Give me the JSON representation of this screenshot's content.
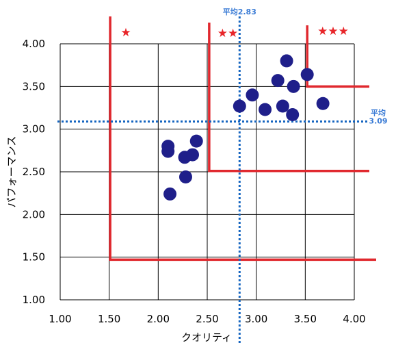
{
  "chart_data": {
    "type": "scatter",
    "xlabel": "クオリティ",
    "ylabel": "パフォーマンス",
    "xlim": [
      1.0,
      4.0
    ],
    "ylim": [
      1.0,
      4.0
    ],
    "x_ticks": [
      "1.00",
      "1.50",
      "2.00",
      "2.50",
      "3.00",
      "3.50",
      "4.00"
    ],
    "y_ticks": [
      "1.00",
      "1.50",
      "2.00",
      "2.50",
      "3.00",
      "3.50",
      "4.00"
    ],
    "grid": true,
    "points": [
      {
        "x": 2.1,
        "y": 2.8
      },
      {
        "x": 2.1,
        "y": 2.74
      },
      {
        "x": 2.12,
        "y": 2.24
      },
      {
        "x": 2.27,
        "y": 2.67
      },
      {
        "x": 2.28,
        "y": 2.44
      },
      {
        "x": 2.35,
        "y": 2.7
      },
      {
        "x": 2.39,
        "y": 2.86
      },
      {
        "x": 2.83,
        "y": 3.27
      },
      {
        "x": 2.96,
        "y": 3.4
      },
      {
        "x": 3.09,
        "y": 3.23
      },
      {
        "x": 3.22,
        "y": 3.57
      },
      {
        "x": 3.27,
        "y": 3.27
      },
      {
        "x": 3.31,
        "y": 3.8
      },
      {
        "x": 3.38,
        "y": 3.5
      },
      {
        "x": 3.37,
        "y": 3.17
      },
      {
        "x": 3.52,
        "y": 3.64
      },
      {
        "x": 3.68,
        "y": 3.3
      }
    ],
    "mean_x": {
      "value": 2.83,
      "label": "平均2.83"
    },
    "mean_y": {
      "value": 3.09,
      "label_line1": "平均",
      "label_line2": "3.09"
    },
    "tier_boundaries": [
      {
        "x": 1.51,
        "y": 1.47,
        "stars": "★"
      },
      {
        "x": 2.52,
        "y": 2.51,
        "stars": "★★"
      },
      {
        "x": 3.52,
        "y": 3.5,
        "stars": "★★★"
      }
    ],
    "colors": {
      "points": "#1f1f8a",
      "mean_lines": "#1565c0",
      "mean_label": "#3a7bd5",
      "tier_lines": "#e0282e",
      "grid": "#000000"
    }
  }
}
